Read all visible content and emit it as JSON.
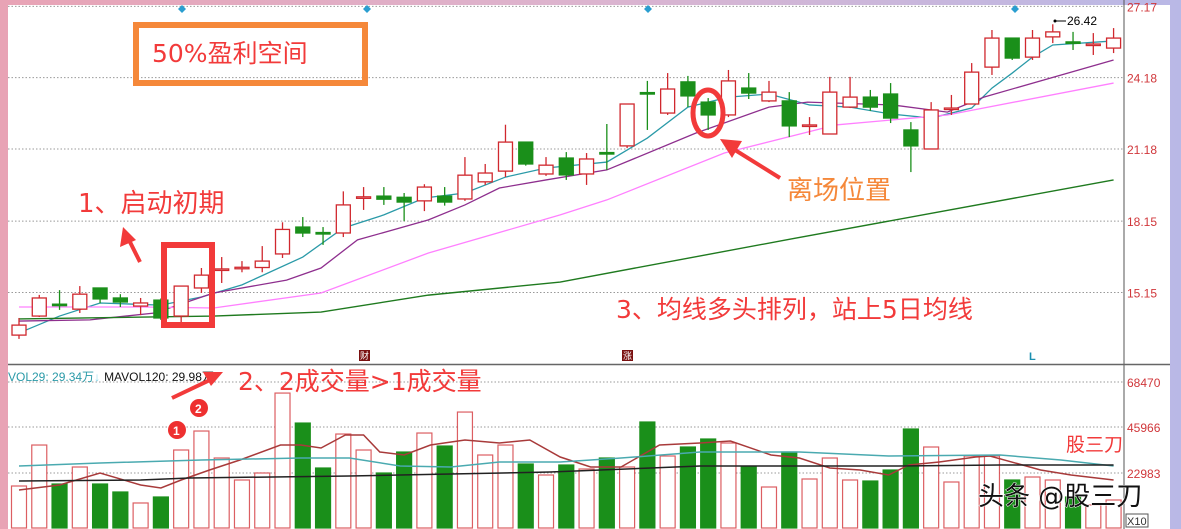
{
  "colors": {
    "up": "#d0282e",
    "down": "#1a8f1a",
    "ma5": "#2a9aa8",
    "ma10": "#8e2f8e",
    "ma20": "#ff80ff",
    "ma60": "#1f7a1f",
    "vol_ma_short": "#a83a3a",
    "vol_ma_mid": "#4aaab0",
    "vol_ma_long": "#222222",
    "annotation_red": "#f23a3a",
    "annotation_orange": "#f5883a",
    "diamond": "#2a9ed0"
  },
  "annotations": {
    "profit_box": "50%盈利空间",
    "step1": "1、启动初期",
    "step2": "2、2成交量>1成交量",
    "step3": "3、均线多头排列，站上5日均线",
    "exit": "离场位置",
    "circle1": "1",
    "circle2": "2",
    "brand": "股三刀",
    "watermark": "头条 @股三刀"
  },
  "markers": {
    "cai": "财",
    "zhang": "涨",
    "l": "L"
  },
  "volume_header": {
    "vol": "VOL29: 29.34万",
    "vol_arrow": "↓",
    "mavol": "MAVOL120: 29.98万"
  },
  "volume_unit": "X10",
  "chart_data": [
    {
      "type": "candlestick",
      "price_axis_ticks": [
        "27.17",
        "24.18",
        "21.18",
        "18.15",
        "15.15"
      ],
      "tick_values": [
        27.17,
        24.18,
        21.18,
        18.15,
        15.15
      ],
      "high_label": "26.42",
      "grid": true,
      "ohlc": [
        [
          13.36,
          14.08,
          13.2,
          13.78
        ],
        [
          14.16,
          15.05,
          14.12,
          14.92
        ],
        [
          14.66,
          15.25,
          14.42,
          14.64
        ],
        [
          14.45,
          15.42,
          14.29,
          15.08
        ],
        [
          15.34,
          15.34,
          14.7,
          14.88
        ],
        [
          14.92,
          15.08,
          14.54,
          14.75
        ],
        [
          14.58,
          14.92,
          14.2,
          14.71
        ],
        [
          14.83,
          14.9,
          14.0,
          14.08
        ],
        [
          14.16,
          15.42,
          13.9,
          15.42
        ],
        [
          15.34,
          16.18,
          15.13,
          15.88
        ],
        [
          16.12,
          16.64,
          15.55,
          16.14
        ],
        [
          16.19,
          16.47,
          16.0,
          16.21
        ],
        [
          16.2,
          17.1,
          16.0,
          16.47
        ],
        [
          16.77,
          18.1,
          16.6,
          17.8
        ],
        [
          17.9,
          18.32,
          17.48,
          17.65
        ],
        [
          17.67,
          17.9,
          17.15,
          17.63
        ],
        [
          17.65,
          19.4,
          17.48,
          18.83
        ],
        [
          19.14,
          19.58,
          18.62,
          19.17
        ],
        [
          19.2,
          19.58,
          18.83,
          19.07
        ],
        [
          19.15,
          19.33,
          18.15,
          18.95
        ],
        [
          19.0,
          19.7,
          18.57,
          19.58
        ],
        [
          19.2,
          19.58,
          18.8,
          18.95
        ],
        [
          19.08,
          20.84,
          19.0,
          20.08
        ],
        [
          19.8,
          20.55,
          19.67,
          20.17
        ],
        [
          20.25,
          22.2,
          20.0,
          21.47
        ],
        [
          21.47,
          21.47,
          20.48,
          20.55
        ],
        [
          20.13,
          20.84,
          20.05,
          20.5
        ],
        [
          20.8,
          21.05,
          19.88,
          20.09
        ],
        [
          20.13,
          21.01,
          19.67,
          20.76
        ],
        [
          21.03,
          22.23,
          20.3,
          21.0
        ],
        [
          21.31,
          23.07,
          21.22,
          23.07
        ],
        [
          23.55,
          24.04,
          21.98,
          23.5
        ],
        [
          22.69,
          24.37,
          22.61,
          23.7
        ],
        [
          24.0,
          24.25,
          22.94,
          23.41
        ],
        [
          23.15,
          23.32,
          21.98,
          22.61
        ],
        [
          22.61,
          24.5,
          22.52,
          24.04
        ],
        [
          23.74,
          24.37,
          23.28,
          23.53
        ],
        [
          23.2,
          24.04,
          23.15,
          23.57
        ],
        [
          23.2,
          23.57,
          21.68,
          22.15
        ],
        [
          22.17,
          22.52,
          21.77,
          22.19
        ],
        [
          21.81,
          24.21,
          21.81,
          23.57
        ],
        [
          22.94,
          24.21,
          22.9,
          23.36
        ],
        [
          23.36,
          23.66,
          22.78,
          22.94
        ],
        [
          23.49,
          23.95,
          22.27,
          22.48
        ],
        [
          21.98,
          22.31,
          20.21,
          21.31
        ],
        [
          21.18,
          23.15,
          21.18,
          22.82
        ],
        [
          22.88,
          23.45,
          22.61,
          22.9
        ],
        [
          23.07,
          24.79,
          23.07,
          24.41
        ],
        [
          24.62,
          26.18,
          24.29,
          25.84
        ],
        [
          25.84,
          25.84,
          24.92,
          25.0
        ],
        [
          25.04,
          26.18,
          24.92,
          25.84
        ],
        [
          25.89,
          26.42,
          25.63,
          26.1
        ],
        [
          25.68,
          26.1,
          25.34,
          25.65
        ],
        [
          25.57,
          26.05,
          25.13,
          25.59
        ],
        [
          25.42,
          26.26,
          25.21,
          25.84
        ]
      ],
      "ma_lines": [
        {
          "key": "ma5",
          "points": [
            [
              1,
              13.45
            ],
            [
              3,
              14.16
            ],
            [
              5,
              14.71
            ],
            [
              8,
              14.62
            ],
            [
              10,
              14.96
            ],
            [
              12,
              15.47
            ],
            [
              15,
              16.64
            ],
            [
              17,
              17.86
            ],
            [
              19,
              18.41
            ],
            [
              21,
              19.12
            ],
            [
              23,
              19.33
            ],
            [
              25,
              20.0
            ],
            [
              27,
              20.38
            ],
            [
              30,
              20.63
            ],
            [
              32,
              21.64
            ],
            [
              34,
              22.94
            ],
            [
              35,
              23.15
            ],
            [
              36,
              23.36
            ],
            [
              38,
              23.49
            ],
            [
              40,
              23.03
            ],
            [
              42,
              22.94
            ],
            [
              44,
              22.65
            ],
            [
              46,
              22.48
            ],
            [
              48,
              22.9
            ],
            [
              49,
              23.74
            ],
            [
              50,
              24.37
            ],
            [
              51,
              25.04
            ],
            [
              52,
              25.55
            ],
            [
              55,
              25.72
            ]
          ]
        },
        {
          "key": "ma10",
          "points": [
            [
              1,
              13.95
            ],
            [
              4.5,
              14.0
            ],
            [
              7.7,
              14.29
            ],
            [
              10.6,
              15.13
            ],
            [
              14.2,
              15.67
            ],
            [
              15.9,
              16.18
            ],
            [
              17.7,
              17.36
            ],
            [
              21.2,
              18.2
            ],
            [
              23,
              18.83
            ],
            [
              24.7,
              19.54
            ],
            [
              27,
              19.88
            ],
            [
              30,
              20.3
            ],
            [
              34.4,
              21.85
            ],
            [
              38,
              22.94
            ],
            [
              39.9,
              23.15
            ],
            [
              44.1,
              23.03
            ],
            [
              46.8,
              22.73
            ],
            [
              48.6,
              23.36
            ],
            [
              55,
              24.92
            ]
          ]
        },
        {
          "key": "ma20",
          "points": [
            [
              1,
              14.54
            ],
            [
              7.1,
              14.54
            ],
            [
              10.6,
              14.5
            ],
            [
              15.9,
              15.13
            ],
            [
              21.2,
              16.81
            ],
            [
              27.7,
              18.41
            ],
            [
              30,
              19.04
            ],
            [
              35.8,
              21.01
            ],
            [
              41.3,
              22.19
            ],
            [
              46.8,
              22.61
            ],
            [
              55,
              23.95
            ]
          ]
        },
        {
          "key": "ma60",
          "points": [
            [
              1,
              14.04
            ],
            [
              10.6,
              14.16
            ],
            [
              15.9,
              14.33
            ],
            [
              21.2,
              15.04
            ],
            [
              27.7,
              15.59
            ],
            [
              39.1,
              17.4
            ],
            [
              55,
              19.88
            ]
          ]
        }
      ]
    },
    {
      "type": "bar",
      "volume_axis_ticks": [
        "68470",
        "45966",
        "22983"
      ],
      "tick_values": [
        68470,
        45966,
        22983
      ],
      "grid": true,
      "values": [
        16480,
        36970,
        17480,
        25980,
        17480,
        13490,
        7990,
        10990,
        34480,
        43970,
        30480,
        19480,
        22980,
        62950,
        47960,
        25480,
        42470,
        34480,
        22980,
        33470,
        42970,
        36470,
        53460,
        31980,
        36970,
        27480,
        21980,
        26980,
        24980,
        30480,
        25980,
        48480,
        31480,
        35980,
        39980,
        37980,
        25980,
        15980,
        33480,
        19980,
        30480,
        19480,
        18980,
        24480,
        44980,
        35980,
        18480,
        31480,
        31480,
        19480,
        20980,
        19480,
        10980,
        6980,
        9480
      ],
      "ma_lines": [
        {
          "key": "vol_ma_short",
          "points": [
            [
              1,
              14480
            ],
            [
              3,
              16980
            ],
            [
              5,
              22980
            ],
            [
              7,
              16980
            ],
            [
              8,
              15480
            ],
            [
              9,
              19480
            ],
            [
              10.4,
              24480
            ],
            [
              11.9,
              29480
            ],
            [
              13.9,
              36980
            ],
            [
              14.9,
              36980
            ],
            [
              15.9,
              35480
            ],
            [
              17.1,
              41980
            ],
            [
              18,
              41980
            ],
            [
              18.8,
              33480
            ],
            [
              20,
              31980
            ],
            [
              21.3,
              36980
            ],
            [
              23,
              39480
            ],
            [
              24.7,
              37980
            ],
            [
              26.2,
              39480
            ],
            [
              27.7,
              30980
            ],
            [
              29.2,
              25980
            ],
            [
              30.7,
              25980
            ],
            [
              32.6,
              36980
            ],
            [
              34.6,
              37980
            ],
            [
              36.1,
              38980
            ],
            [
              38.1,
              31980
            ],
            [
              39.5,
              30480
            ],
            [
              41,
              25480
            ],
            [
              42.5,
              24480
            ],
            [
              43.9,
              21980
            ],
            [
              44.9,
              26980
            ],
            [
              46.4,
              28480
            ],
            [
              48.2,
              30980
            ],
            [
              48.9,
              31480
            ],
            [
              51.4,
              24480
            ],
            [
              52.9,
              21980
            ],
            [
              55,
              19480
            ]
          ]
        },
        {
          "key": "vol_ma_mid",
          "points": [
            [
              1,
              26480
            ],
            [
              5,
              27980
            ],
            [
              10,
              29480
            ],
            [
              14.9,
              30480
            ],
            [
              17.3,
              30480
            ],
            [
              19.8,
              26480
            ],
            [
              22.3,
              25980
            ],
            [
              24.7,
              28480
            ],
            [
              27.7,
              28480
            ],
            [
              30.7,
              30480
            ],
            [
              34.6,
              33480
            ],
            [
              39.5,
              33480
            ],
            [
              43.9,
              31480
            ],
            [
              49.4,
              31980
            ],
            [
              52.4,
              29480
            ],
            [
              55,
              26480
            ]
          ]
        },
        {
          "key": "vol_ma_long",
          "points": [
            [
              1,
              18980
            ],
            [
              7,
              19480
            ],
            [
              9.4,
              20480
            ],
            [
              17.3,
              21480
            ],
            [
              22.3,
              22480
            ],
            [
              27.2,
              23480
            ],
            [
              34.6,
              26480
            ],
            [
              39.5,
              26480
            ],
            [
              44.4,
              26480
            ],
            [
              49.4,
              26980
            ],
            [
              55,
              26980
            ]
          ]
        }
      ]
    }
  ]
}
